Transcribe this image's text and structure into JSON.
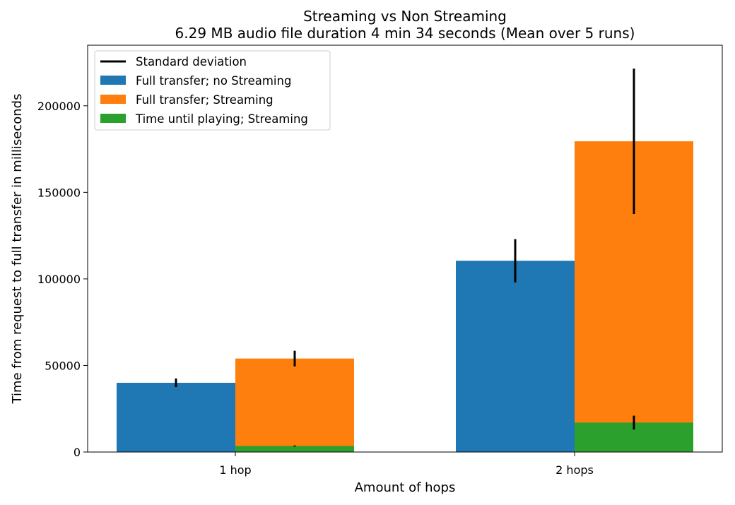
{
  "chart_data": {
    "type": "bar",
    "title": "Streaming vs Non Streaming",
    "subtitle": "6.29 MB audio file duration 4 min 34 seconds (Mean over 5 runs)",
    "xlabel": "Amount of hops",
    "ylabel": "Time from request to full transfer in milliseconds",
    "categories": [
      "1 hop",
      "2 hops"
    ],
    "ylim": [
      0,
      235000
    ],
    "yticks": [
      0,
      50000,
      100000,
      150000,
      200000
    ],
    "ytick_labels": [
      "0",
      "50000",
      "100000",
      "150000",
      "200000"
    ],
    "grid": false,
    "legend_position": "top-left",
    "errorbar_legend": "Standard deviation",
    "series": [
      {
        "name": "Full transfer; no Streaming",
        "color": "#1f77b4",
        "values": [
          40000,
          110500
        ],
        "std": [
          2500,
          12500
        ],
        "group_slot": 0
      },
      {
        "name": "Full transfer; Streaming",
        "color": "#ff7f0e",
        "values": [
          54000,
          179500
        ],
        "std": [
          4500,
          42000
        ],
        "group_slot": 1
      },
      {
        "name": "Time until playing; Streaming",
        "color": "#2ca02c",
        "values": [
          3500,
          17000
        ],
        "std": [
          300,
          4000
        ],
        "group_slot": 1
      }
    ]
  }
}
